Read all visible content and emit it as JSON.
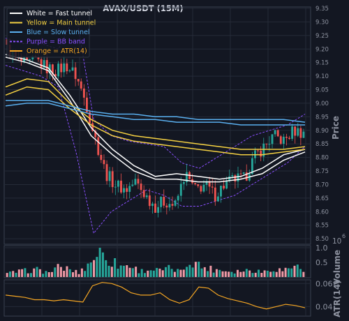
{
  "chart_data": [
    {
      "panel": "price",
      "type": "candlestick",
      "title": "AVAX/USDT (15M)",
      "ylabel": "Price",
      "ylim": [
        8.49,
        9.35
      ],
      "yticks": [
        "8.50",
        "8.55",
        "8.60",
        "8.65",
        "8.70",
        "8.75",
        "8.80",
        "8.85",
        "8.90",
        "8.95",
        "9.00",
        "9.05",
        "9.10",
        "9.15",
        "9.20",
        "9.25",
        "9.30",
        "9.35"
      ],
      "grid": true,
      "legend_position": "top-left",
      "legend": [
        {
          "label": "White = Fast tunnel",
          "color": "#ffffff",
          "style": "solid"
        },
        {
          "label": "Yellow = Main tunnel",
          "color": "#f5d142",
          "style": "solid"
        },
        {
          "label": "Blue = Slow tunnel",
          "color": "#5ab0f0",
          "style": "solid"
        },
        {
          "label": "Purple = BB band",
          "color": "#8a4fff",
          "style": "dashed"
        },
        {
          "label": "Orange = ATR(14)",
          "color": "#f5a623",
          "style": "solid"
        }
      ],
      "close_anchors": [
        9.2,
        9.16,
        9.14,
        9.16,
        9.13,
        9.12,
        9.14,
        9.1,
        9.0,
        8.86,
        8.74,
        8.7,
        8.68,
        8.71,
        8.66,
        8.62,
        8.64,
        8.62,
        8.74,
        8.68,
        8.7,
        8.66,
        8.7,
        8.72,
        8.72,
        8.8,
        8.84,
        8.88,
        8.86,
        8.9,
        8.89
      ],
      "series": [
        {
          "name": "Fast tunnel",
          "color": "#ffffff",
          "upper": [
            9.18,
            9.16,
            9.13,
            9.03,
            8.91,
            8.83,
            8.77,
            8.73,
            8.74,
            8.73,
            8.72,
            8.73,
            8.76,
            8.81,
            8.83
          ],
          "lower": [
            9.17,
            9.15,
            9.12,
            9.01,
            8.88,
            8.81,
            8.75,
            8.72,
            8.72,
            8.71,
            8.71,
            8.72,
            8.74,
            8.79,
            8.82
          ]
        },
        {
          "name": "Main tunnel",
          "color": "#f5d142",
          "upper": [
            9.06,
            9.09,
            9.08,
            9.0,
            8.94,
            8.9,
            8.88,
            8.87,
            8.86,
            8.85,
            8.84,
            8.83,
            8.83,
            8.83,
            8.84
          ],
          "lower": [
            9.03,
            9.06,
            9.05,
            8.98,
            8.92,
            8.88,
            8.86,
            8.85,
            8.84,
            8.83,
            8.82,
            8.81,
            8.81,
            8.82,
            8.83
          ]
        },
        {
          "name": "Slow tunnel",
          "color": "#5ab0f0",
          "upper": [
            9.01,
            9.01,
            9.01,
            8.99,
            8.97,
            8.96,
            8.96,
            8.95,
            8.95,
            8.94,
            8.94,
            8.94,
            8.94,
            8.94,
            8.93
          ],
          "lower": [
            8.99,
            9.0,
            9.0,
            8.98,
            8.96,
            8.95,
            8.94,
            8.94,
            8.93,
            8.93,
            8.93,
            8.92,
            8.92,
            8.92,
            8.92
          ]
        },
        {
          "name": "BB band",
          "color": "#8a4fff",
          "upper": [
            9.24,
            9.22,
            9.22,
            9.2,
            9.33,
            8.94,
            8.88,
            8.86,
            8.85,
            8.84,
            8.78,
            8.76,
            8.8,
            8.84,
            8.88,
            8.9,
            8.92,
            8.96
          ],
          "lower": [
            9.14,
            9.12,
            9.1,
            9.06,
            8.82,
            8.52,
            8.6,
            8.64,
            8.68,
            8.66,
            8.62,
            8.62,
            8.64,
            8.66,
            8.7,
            8.74,
            8.78,
            8.84
          ]
        }
      ]
    },
    {
      "panel": "volume",
      "type": "bar",
      "ylabel": "Volume",
      "scale_label": "10",
      "scale_exponent": "6",
      "ylim": [
        0,
        1.0
      ],
      "yticks": [
        "0.5",
        "1.0"
      ],
      "values": [
        0.12,
        0.18,
        0.22,
        0.25,
        0.15,
        0.32,
        0.28,
        0.14,
        0.45,
        0.92,
        0.6,
        0.38,
        0.4,
        0.2,
        0.26,
        0.22,
        0.3,
        0.18,
        0.62,
        0.35,
        0.28,
        0.24,
        0.2,
        0.22,
        0.25,
        0.18,
        0.3,
        0.22,
        0.4,
        0.28
      ]
    },
    {
      "panel": "atr",
      "type": "line",
      "ylabel": "ATR(14)",
      "ylim": [
        0.033,
        0.062
      ],
      "yticks": [
        "0.04",
        "0.06"
      ],
      "color": "#f5a623",
      "values": [
        0.05,
        0.049,
        0.048,
        0.046,
        0.046,
        0.045,
        0.046,
        0.045,
        0.044,
        0.058,
        0.061,
        0.06,
        0.057,
        0.052,
        0.05,
        0.05,
        0.052,
        0.046,
        0.043,
        0.046,
        0.057,
        0.056,
        0.05,
        0.047,
        0.045,
        0.043,
        0.04,
        0.038,
        0.04,
        0.042,
        0.041,
        0.039
      ]
    }
  ]
}
